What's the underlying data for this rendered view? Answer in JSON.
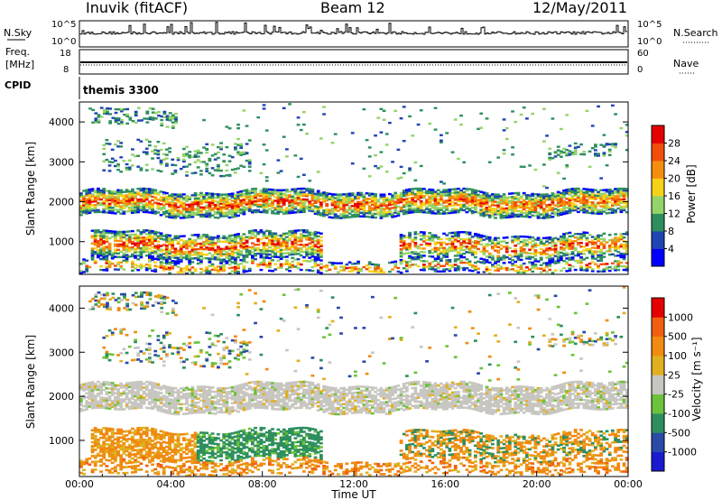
{
  "header": {
    "station": "Inuvik (fitACF)",
    "beam": "Beam 12",
    "date": "12/May/2011"
  },
  "top_panels": {
    "nsky_label": "N.Sky",
    "nsky_ticks": [
      "10^5",
      "10^0"
    ],
    "nsearch_label": "N.Search",
    "nsearch_ticks": [
      "10^5",
      "10^0"
    ],
    "freq_label": "Freq.",
    "freq_unit": "[MHz]",
    "freq_ticks": [
      "18",
      "8"
    ],
    "nave_label": "Nave",
    "nave_ticks": [
      "60",
      "0"
    ],
    "cpid_label": "CPID",
    "cpid_value": "themis 3300"
  },
  "chart_data": [
    {
      "type": "heatmap",
      "parameter": "power",
      "ylabel": "Slant Range [km]",
      "yticks": [
        "4000",
        "3000",
        "2000",
        "1000"
      ],
      "ylim": [
        180,
        4500
      ],
      "colorbar_label": "Power [dB]",
      "colorbar_ticks": [
        "28",
        "24",
        "20",
        "16",
        "12",
        "8",
        "4"
      ],
      "colorbar_colors": [
        "#0000ff",
        "#1f44b4",
        "#2e8f5e",
        "#94d46a",
        "#f5d21a",
        "#f58e0e",
        "#f04e0a",
        "#e60000"
      ]
    },
    {
      "type": "heatmap",
      "parameter": "velocity",
      "ylabel": "Slant Range [km]",
      "yticks": [
        "4000",
        "3000",
        "2000",
        "1000"
      ],
      "ylim": [
        180,
        4500
      ],
      "xlabel": "Time UT",
      "xticks": [
        "00:00",
        "04:00",
        "08:00",
        "12:00",
        "16:00",
        "20:00",
        "00:00"
      ],
      "xlim_hours": [
        0,
        24
      ],
      "colorbar_label": "Velocity [m s⁻¹]",
      "colorbar_ticks": [
        "1000",
        "500",
        "100",
        "25",
        "-25",
        "-100",
        "-500",
        "-1000"
      ],
      "colorbar_colors": [
        "#1a1ad0",
        "#2a4aa8",
        "#2e8f5e",
        "#6cc23a",
        "#c8c6c0",
        "#e0b020",
        "#f08a10",
        "#f06010",
        "#e60000"
      ]
    }
  ]
}
